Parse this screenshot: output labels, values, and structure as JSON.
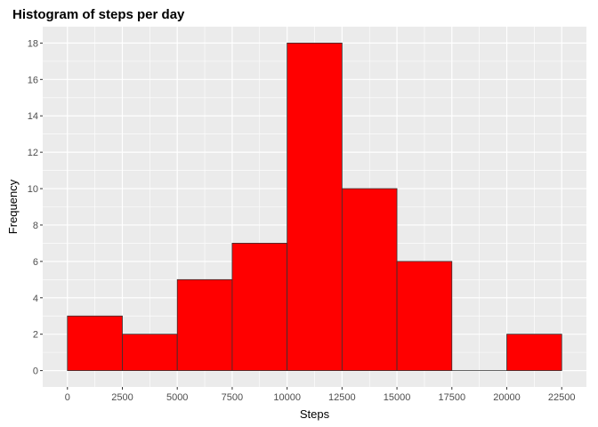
{
  "chart_data": {
    "type": "bar",
    "title": "Histogram of steps per day",
    "xlabel": "Steps",
    "ylabel": "Frequency",
    "bin_width": 2500,
    "bins": [
      {
        "start": 0,
        "end": 2500,
        "count": 3
      },
      {
        "start": 2500,
        "end": 5000,
        "count": 2
      },
      {
        "start": 5000,
        "end": 7500,
        "count": 5
      },
      {
        "start": 7500,
        "end": 10000,
        "count": 7
      },
      {
        "start": 10000,
        "end": 12500,
        "count": 18
      },
      {
        "start": 12500,
        "end": 15000,
        "count": 10
      },
      {
        "start": 15000,
        "end": 17500,
        "count": 6
      },
      {
        "start": 17500,
        "end": 20000,
        "count": 0
      },
      {
        "start": 20000,
        "end": 22500,
        "count": 2
      }
    ],
    "xlim": [
      -1125,
      23625
    ],
    "ylim": [
      -0.9,
      18.9
    ],
    "x_ticks": [
      0,
      2500,
      5000,
      7500,
      10000,
      12500,
      15000,
      17500,
      20000,
      22500
    ],
    "y_ticks": [
      0,
      2,
      4,
      6,
      8,
      10,
      12,
      14,
      16,
      18
    ],
    "grid": true,
    "bar_fill": "#ff0000",
    "bar_stroke": "#333333",
    "panel_background": "#ebebeb",
    "grid_color": "#ffffff"
  }
}
